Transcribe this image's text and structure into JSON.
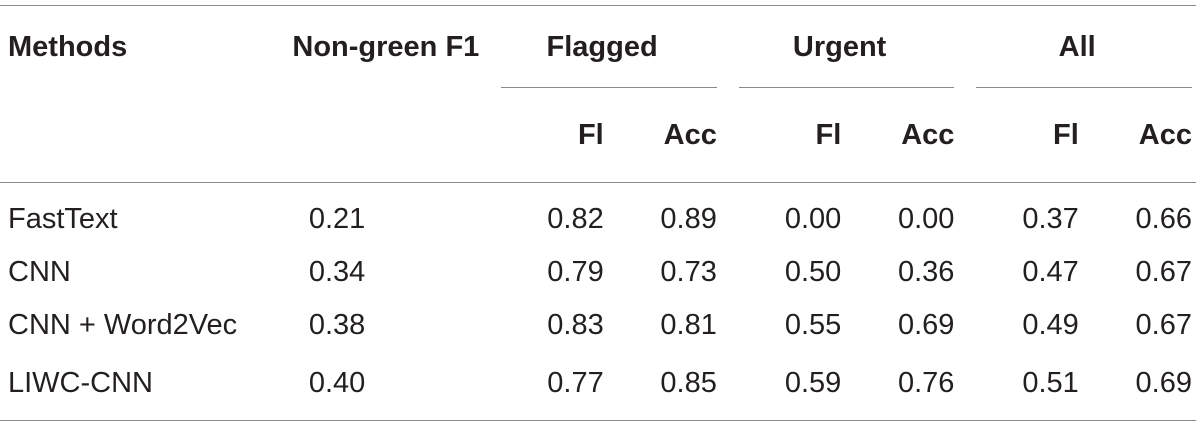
{
  "table": {
    "headers": {
      "methods": "Methods",
      "non_green": "Non-green F1",
      "groups": [
        "Flagged",
        "Urgent",
        "All"
      ],
      "sub": [
        "Fl",
        "Acc",
        "Fl",
        "Acc",
        "Fl",
        "Acc"
      ]
    },
    "rows": [
      {
        "method": "FastText",
        "non_green": "0.21",
        "values": [
          "0.82",
          "0.89",
          "0.00",
          "0.00",
          "0.37",
          "0.66"
        ]
      },
      {
        "method": "CNN",
        "non_green": "0.34",
        "values": [
          "0.79",
          "0.73",
          "0.50",
          "0.36",
          "0.47",
          "0.67"
        ]
      },
      {
        "method": "CNN + Word2Vec",
        "non_green": "0.38",
        "values": [
          "0.83",
          "0.81",
          "0.55",
          "0.69",
          "0.49",
          "0.67"
        ]
      },
      {
        "method": "LIWC-CNN",
        "non_green": "0.40",
        "values": [
          "0.77",
          "0.85",
          "0.59",
          "0.76",
          "0.51",
          "0.69"
        ]
      }
    ]
  }
}
